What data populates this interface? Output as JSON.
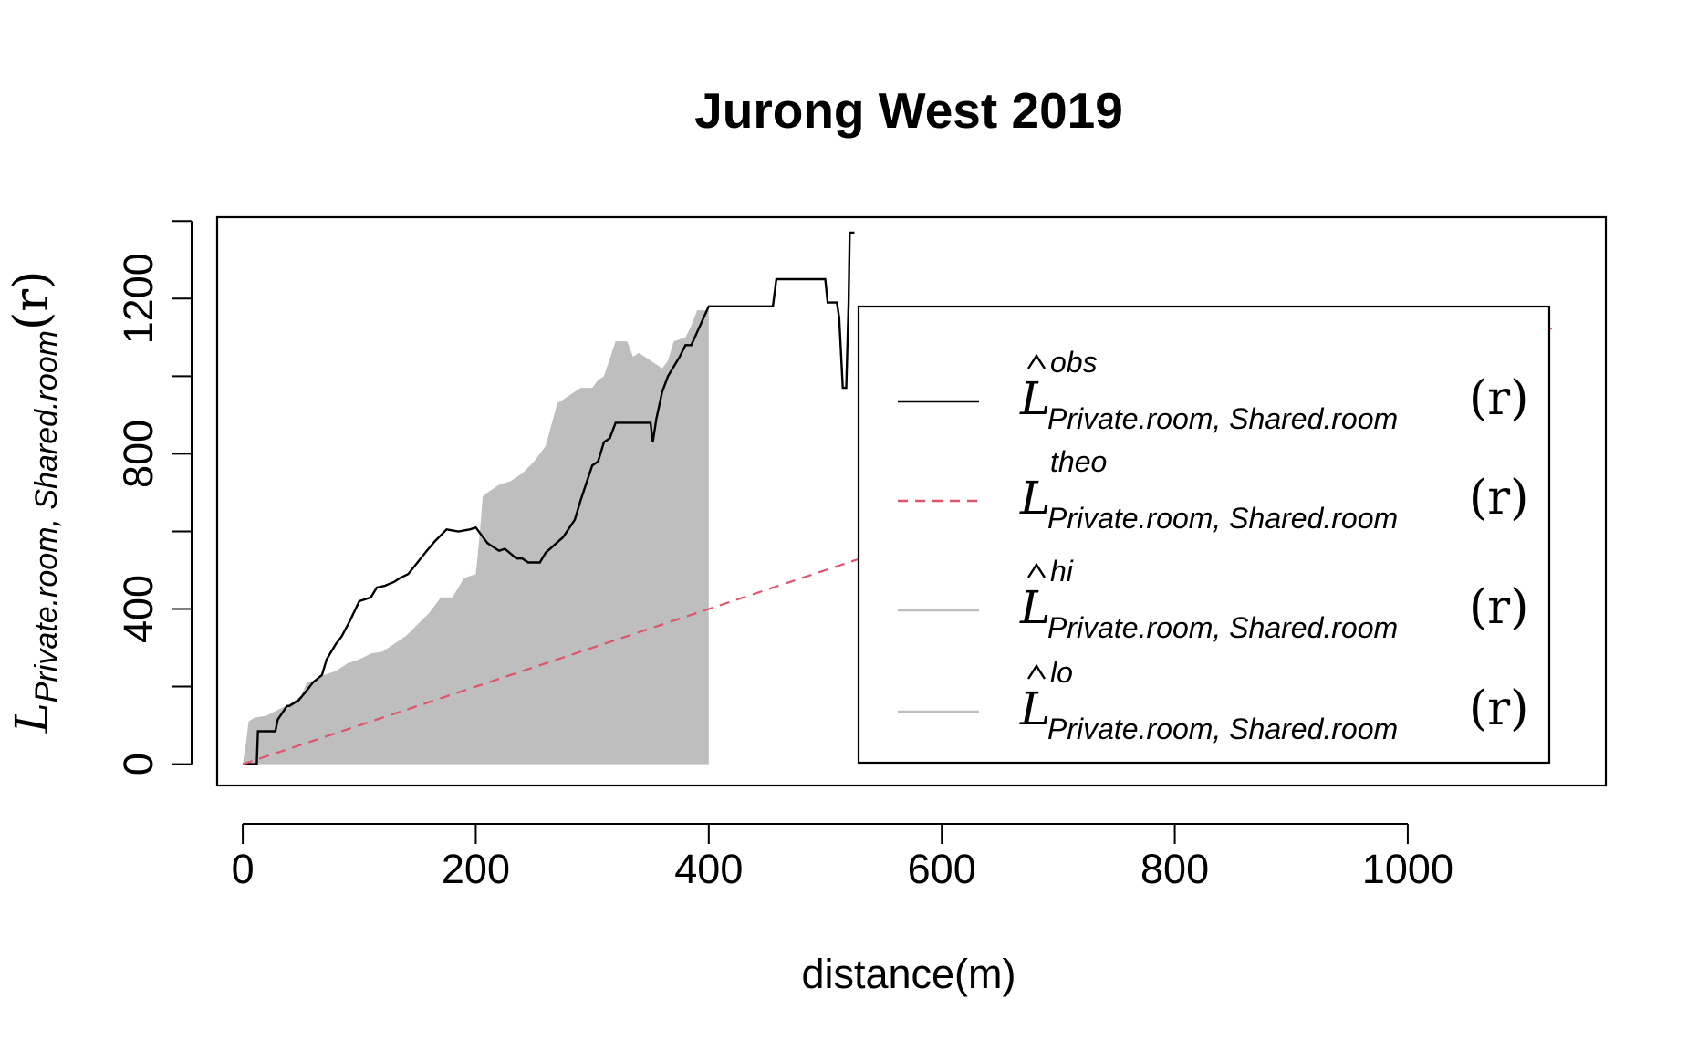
{
  "chart_data": {
    "type": "line",
    "title": "Jurong West 2019",
    "xlabel": "distance(m)",
    "ylabel": {
      "symbol": "L",
      "subscript": "Private.room, Shared.room",
      "argument": "(r)"
    },
    "xlim": [
      -22,
      1170
    ],
    "ylim": [
      -55,
      1410
    ],
    "x_ticks": [
      0,
      200,
      400,
      600,
      800,
      1000
    ],
    "y_ticks": [
      0,
      400,
      800,
      1200
    ],
    "y_minor_ticks": [
      0,
      200,
      400,
      600,
      800,
      1000,
      1200,
      1400
    ],
    "legend": {
      "placement": "right",
      "entries": [
        {
          "symbol": "L",
          "hat": true,
          "superscript": "obs",
          "subscript": "Private.room, Shared.room",
          "argument": "(r)",
          "color": "#000000",
          "dash": "solid"
        },
        {
          "symbol": "L",
          "hat": false,
          "superscript": "theo",
          "subscript": "Private.room, Shared.room",
          "argument": "(r)",
          "color": "#DF536B",
          "dash": "dashed"
        },
        {
          "symbol": "L",
          "hat": true,
          "superscript": "hi",
          "subscript": "Private.room, Shared.room",
          "argument": "(r)",
          "color": "#BEBEBE",
          "dash": "solid"
        },
        {
          "symbol": "L",
          "hat": true,
          "superscript": "lo",
          "subscript": "Private.room, Shared.room",
          "argument": "(r)",
          "color": "#BEBEBE",
          "dash": "solid"
        }
      ]
    },
    "envelope": {
      "color": "#BEBEBE",
      "x": [
        0,
        3,
        5,
        10,
        20,
        30,
        40,
        50,
        55,
        60,
        70,
        80,
        90,
        100,
        110,
        120,
        130,
        140,
        150,
        160,
        170,
        180,
        190,
        200,
        203,
        206,
        210,
        220,
        230,
        240,
        250,
        260,
        270,
        280,
        290,
        300,
        305,
        310,
        320,
        330,
        335,
        340,
        350,
        360,
        365,
        370,
        380,
        385,
        390,
        400
      ],
      "hi": [
        0,
        60,
        110,
        120,
        125,
        140,
        155,
        175,
        210,
        215,
        230,
        240,
        260,
        270,
        285,
        290,
        310,
        330,
        360,
        390,
        430,
        430,
        480,
        490,
        580,
        690,
        700,
        720,
        730,
        750,
        780,
        820,
        930,
        950,
        970,
        970,
        990,
        1000,
        1090,
        1090,
        1050,
        1060,
        1040,
        1020,
        1040,
        1090,
        1100,
        1130,
        1170,
        1170
      ],
      "lo": [
        0,
        0,
        0,
        0,
        0,
        0,
        0,
        0,
        0,
        0,
        0,
        0,
        0,
        0,
        0,
        0,
        0,
        0,
        0,
        0,
        0,
        0,
        0,
        0,
        0,
        0,
        0,
        0,
        0,
        0,
        0,
        0,
        0,
        0,
        0,
        0,
        0,
        0,
        0,
        0,
        0,
        0,
        0,
        0,
        0,
        0,
        0,
        0,
        0,
        0
      ]
    },
    "series": [
      {
        "name": "obs",
        "color": "#000000",
        "dash": "solid",
        "x": [
          0,
          12,
          13,
          28,
          30,
          38,
          40,
          48,
          55,
          60,
          68,
          72,
          80,
          85,
          92,
          100,
          110,
          115,
          122,
          130,
          135,
          142,
          150,
          158,
          165,
          170,
          175,
          185,
          195,
          200,
          205,
          210,
          215,
          220,
          225,
          235,
          240,
          245,
          255,
          260,
          275,
          285,
          290,
          300,
          305,
          310,
          315,
          320,
          330,
          340,
          350,
          352,
          355,
          360,
          365,
          375,
          380,
          385,
          400,
          415,
          430,
          455,
          458,
          470,
          490,
          500,
          502,
          510,
          512,
          515,
          518,
          520,
          521,
          525
        ],
        "y": [
          0,
          0,
          85,
          85,
          115,
          150,
          150,
          165,
          190,
          210,
          230,
          270,
          310,
          330,
          370,
          420,
          430,
          455,
          460,
          470,
          480,
          490,
          520,
          550,
          575,
          590,
          605,
          600,
          605,
          610,
          590,
          570,
          560,
          550,
          555,
          530,
          530,
          520,
          520,
          545,
          585,
          630,
          680,
          770,
          780,
          830,
          840,
          880,
          880,
          880,
          880,
          830,
          890,
          960,
          1000,
          1050,
          1080,
          1080,
          1180,
          1180,
          1180,
          1180,
          1250,
          1250,
          1250,
          1250,
          1190,
          1190,
          1150,
          970,
          970,
          1190,
          1370,
          1370
        ]
      },
      {
        "name": "theo",
        "color": "#DF536B",
        "dash": "dashed",
        "x": [
          0,
          1125
        ],
        "y": [
          0,
          1125
        ]
      }
    ]
  }
}
